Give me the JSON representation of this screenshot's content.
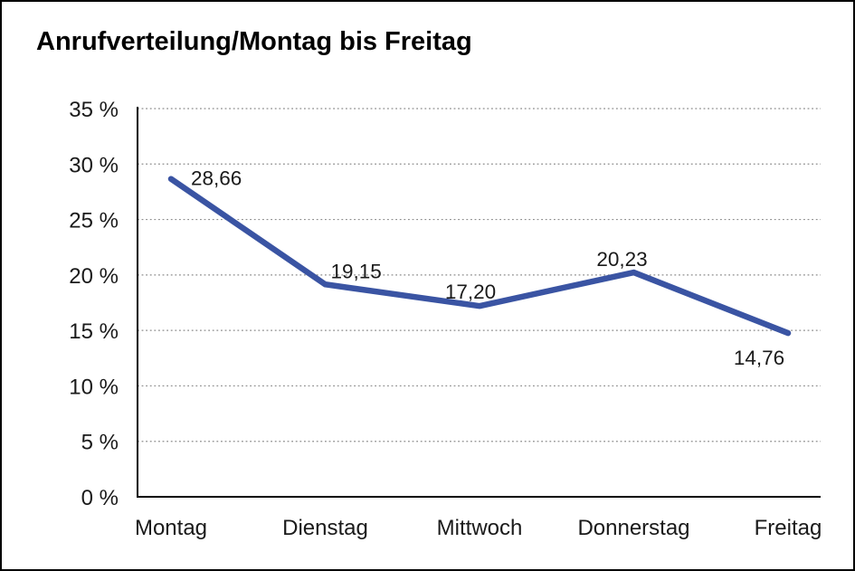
{
  "window": {
    "background": "#ffffff",
    "border_color": "#000000"
  },
  "chart_data": {
    "type": "line",
    "title": "Anrufverteilung/Montag bis Freitag",
    "categories": [
      "Montag",
      "Dienstag",
      "Mittwoch",
      "Donnerstag",
      "Freitag"
    ],
    "series": [
      {
        "name": "Anrufverteilung",
        "values": [
          28.66,
          19.15,
          17.2,
          20.23,
          14.76
        ],
        "value_labels": [
          "28,66",
          "19,15",
          "17,20",
          "20,23",
          "14,76"
        ]
      }
    ],
    "xlabel": "",
    "ylabel": "",
    "ylim": [
      0,
      35
    ],
    "y_ticks": [
      0,
      5,
      10,
      15,
      20,
      25,
      30,
      35
    ],
    "y_tick_labels": [
      "0 %",
      "5 %",
      "10 %",
      "15 %",
      "20 %",
      "25 %",
      "30 %",
      "35 %"
    ],
    "grid": "horizontal-dotted",
    "legend": "none",
    "colors": {
      "line": "#3A54A3",
      "text": "#1a1a1a",
      "grid": "#8c8c8c",
      "axis": "#000000"
    }
  }
}
